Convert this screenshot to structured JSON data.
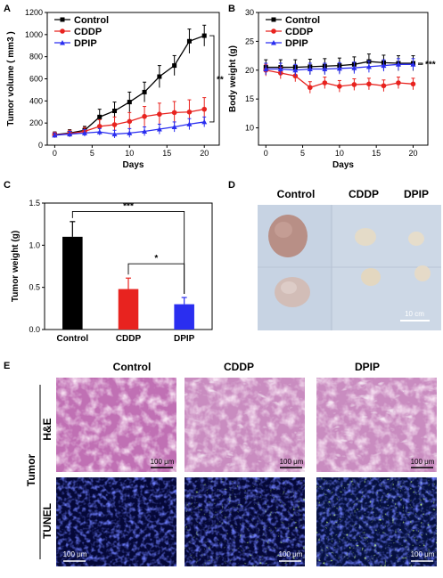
{
  "panels": {
    "A": "A",
    "B": "B",
    "C": "C",
    "D": "D",
    "E": "E"
  },
  "legend": [
    "Control",
    "CDDP",
    "DPIP"
  ],
  "colors": {
    "Control": "#000000",
    "CDDP": "#e8231f",
    "DPIP": "#2a2ef0"
  },
  "chart_data": [
    {
      "id": "A",
      "type": "line",
      "xlabel": "Days",
      "ylabel": "Tumor volume ( mm3 )",
      "xlim": [
        -1,
        22
      ],
      "ylim": [
        0,
        1200
      ],
      "xticks": [
        "0",
        "5",
        "10",
        "15",
        "20"
      ],
      "yticks": [
        "0",
        "200",
        "400",
        "600",
        "800",
        "1000",
        "1200"
      ],
      "x": [
        0,
        2,
        4,
        6,
        8,
        10,
        12,
        14,
        16,
        18,
        20
      ],
      "series": [
        {
          "name": "Control",
          "values": [
            95,
            110,
            135,
            255,
            310,
            390,
            480,
            620,
            720,
            940,
            990
          ],
          "err": [
            25,
            30,
            35,
            70,
            80,
            90,
            90,
            100,
            90,
            110,
            95
          ]
        },
        {
          "name": "CDDP",
          "values": [
            92,
            105,
            125,
            170,
            185,
            215,
            260,
            280,
            295,
            300,
            325
          ],
          "err": [
            25,
            30,
            35,
            60,
            70,
            80,
            90,
            100,
            100,
            110,
            105
          ]
        },
        {
          "name": "DPIP",
          "values": [
            90,
            100,
            110,
            120,
            100,
            110,
            125,
            145,
            165,
            190,
            210
          ],
          "err": [
            20,
            25,
            30,
            30,
            35,
            40,
            40,
            45,
            45,
            50,
            45
          ]
        }
      ],
      "significance": "**"
    },
    {
      "id": "B",
      "type": "line",
      "xlabel": "Days",
      "ylabel": "Body weight (g)",
      "xlim": [
        -1,
        22
      ],
      "ylim": [
        7,
        30
      ],
      "xticks": [
        "0",
        "5",
        "10",
        "15",
        "20"
      ],
      "yticks": [
        "10",
        "15",
        "20",
        "25",
        "30"
      ],
      "x": [
        0,
        2,
        4,
        6,
        8,
        10,
        12,
        14,
        16,
        18,
        20
      ],
      "series": [
        {
          "name": "Control",
          "values": [
            20.5,
            20.5,
            20.5,
            20.6,
            20.7,
            20.8,
            21,
            21.5,
            21.3,
            21.2,
            21.2
          ],
          "err": [
            1.3,
            1.3,
            1.3,
            1.3,
            1.3,
            1.3,
            1.3,
            1.3,
            1.3,
            1.3,
            1.3
          ]
        },
        {
          "name": "CDDP",
          "values": [
            20,
            19.5,
            19,
            17,
            17.8,
            17.2,
            17.5,
            17.6,
            17.3,
            17.8,
            17.6
          ],
          "err": [
            1,
            1,
            1,
            1,
            1,
            1,
            1,
            1,
            1,
            1,
            1
          ]
        },
        {
          "name": "DPIP",
          "values": [
            20.2,
            20.2,
            20,
            20.2,
            20.2,
            20.3,
            20.4,
            20.6,
            20.8,
            21,
            21
          ],
          "err": [
            1,
            1,
            1,
            1,
            1,
            1,
            1,
            1,
            1,
            1,
            1
          ]
        }
      ],
      "significance": "***"
    },
    {
      "id": "C",
      "type": "bar",
      "ylabel": "Tumor weight (g)",
      "categories": [
        "Control",
        "CDDP",
        "DPIP"
      ],
      "values": [
        1.1,
        0.48,
        0.3
      ],
      "err": [
        0.18,
        0.13,
        0.08
      ],
      "ylim": [
        0,
        1.5
      ],
      "yticks": [
        "0.0",
        "0.5",
        "1.0",
        "1.5"
      ],
      "significance": [
        "***",
        "*"
      ]
    }
  ],
  "panel_d": {
    "headers": [
      "Control",
      "CDDP",
      "DPIP"
    ],
    "scale": "10 cm"
  },
  "panel_e": {
    "cols": [
      "Control",
      "CDDP",
      "DPIP"
    ],
    "group": "Tumor",
    "rows": [
      "H&E",
      "TUNEL"
    ],
    "scale": "100 μm"
  }
}
